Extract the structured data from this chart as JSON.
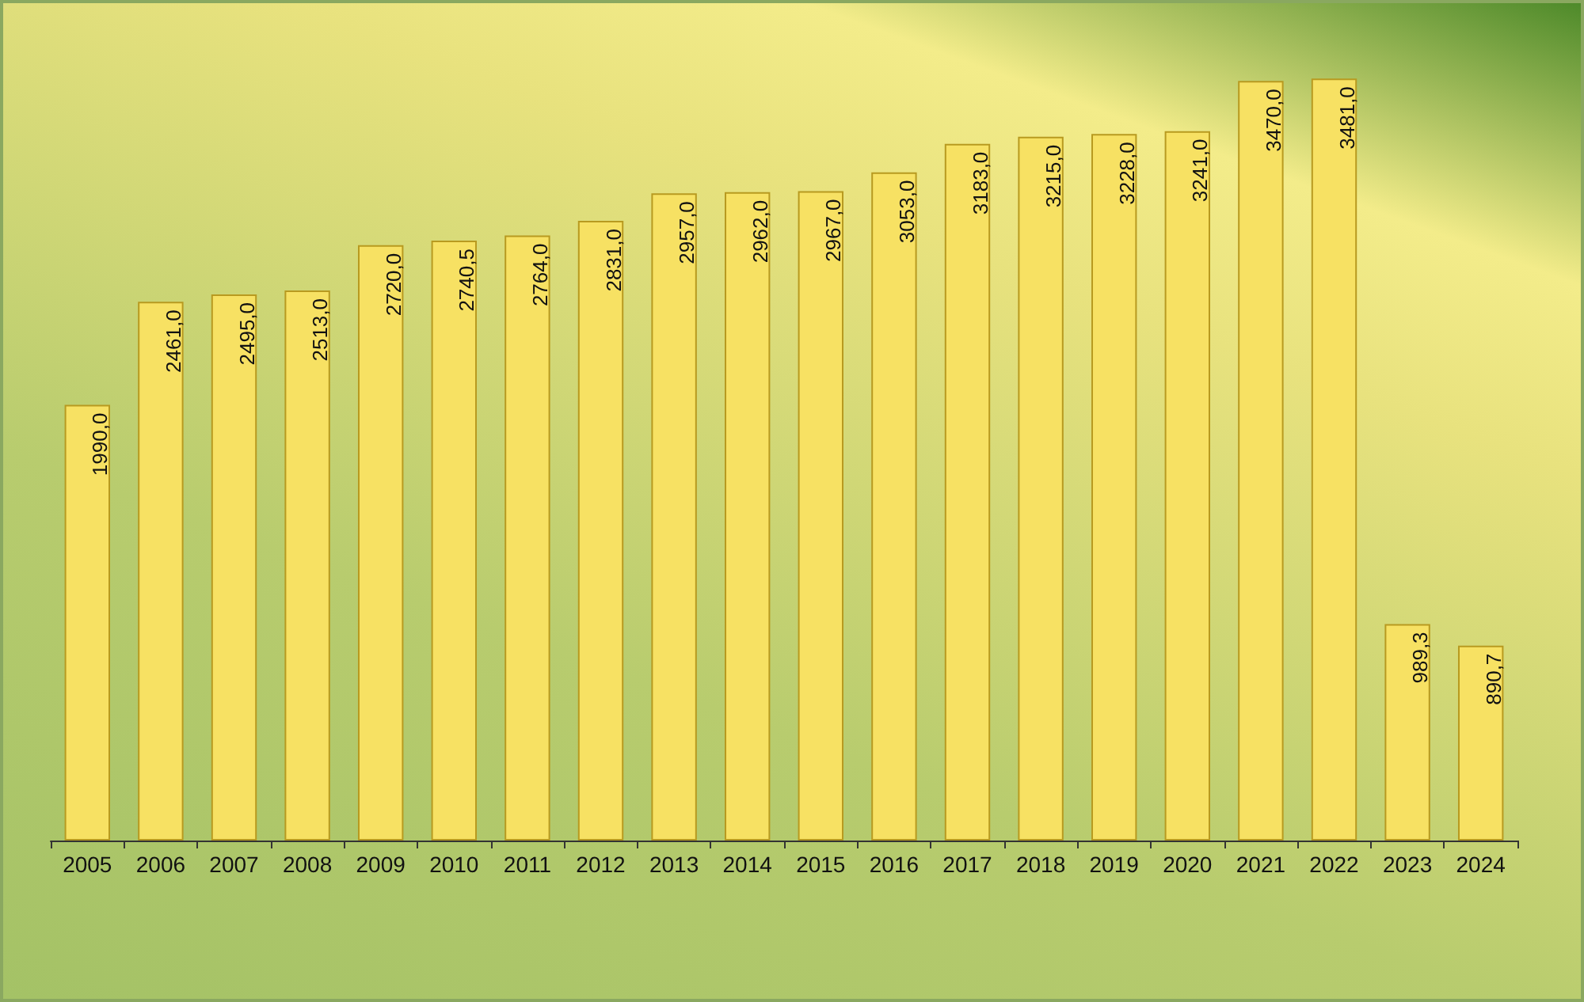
{
  "chart_data": {
    "type": "bar",
    "categories": [
      "2005",
      "2006",
      "2007",
      "2008",
      "2009",
      "2010",
      "2011",
      "2012",
      "2013",
      "2014",
      "2015",
      "2016",
      "2017",
      "2018",
      "2019",
      "2020",
      "2021",
      "2022",
      "2023",
      "2024"
    ],
    "values": [
      1990,
      2461,
      2495,
      2513,
      2720,
      2740.5,
      2764,
      2831,
      2957,
      2962,
      2967,
      3053,
      3183,
      3215,
      3228,
      3241,
      3470,
      3481,
      989.3,
      890.7
    ],
    "value_labels": [
      "1990,0",
      "2461,0",
      "2495,0",
      "2513,0",
      "2720,0",
      "2740,5",
      "2764,0",
      "2831,0",
      "2957,0",
      "2962,0",
      "2967,0",
      "3053,0",
      "3183,0",
      "3215,0",
      "3228,0",
      "3241,0",
      "3470,0",
      "3481,0",
      "989,3",
      "890,7"
    ],
    "color": "#f7e163"
  }
}
